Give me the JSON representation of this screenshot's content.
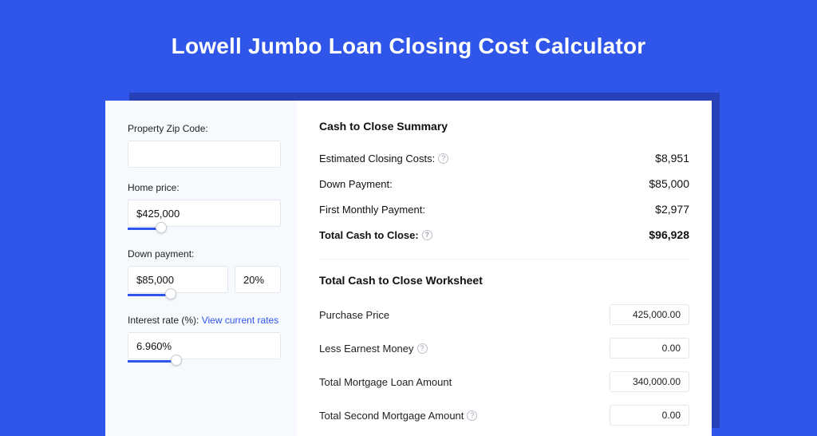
{
  "colors": {
    "page_bg": "#2f56e8",
    "card_shadow": "#2640b8",
    "card_bg": "#fbfdff",
    "sidebar_bg": "#f6f9fe",
    "input_border": "#e3e6ec",
    "slider_track": "#2f56e8",
    "text": "#111111",
    "link": "#2f56e8",
    "help_icon_border": "#b9bec9"
  },
  "header": {
    "title": "Lowell Jumbo Loan Closing Cost Calculator"
  },
  "sidebar": {
    "zip": {
      "label": "Property Zip Code:",
      "value": ""
    },
    "home_price": {
      "label": "Home price:",
      "value": "$425,000",
      "slider_pct": 22
    },
    "down_payment": {
      "label": "Down payment:",
      "value": "$85,000",
      "pct_value": "20%",
      "slider_pct": 28
    },
    "interest_rate": {
      "label": "Interest rate (%):",
      "link_text": "View current rates",
      "value": "6.960%",
      "slider_pct": 32
    }
  },
  "summary": {
    "title": "Cash to Close Summary",
    "rows": [
      {
        "label": "Estimated Closing Costs:",
        "help": true,
        "value": "$8,951",
        "bold": false
      },
      {
        "label": "Down Payment:",
        "help": false,
        "value": "$85,000",
        "bold": false
      },
      {
        "label": "First Monthly Payment:",
        "help": false,
        "value": "$2,977",
        "bold": false
      },
      {
        "label": "Total Cash to Close:",
        "help": true,
        "value": "$96,928",
        "bold": true
      }
    ]
  },
  "worksheet": {
    "title": "Total Cash to Close Worksheet",
    "rows": [
      {
        "label": "Purchase Price",
        "help": false,
        "value": "425,000.00"
      },
      {
        "label": "Less Earnest Money",
        "help": true,
        "value": "0.00"
      },
      {
        "label": "Total Mortgage Loan Amount",
        "help": false,
        "value": "340,000.00"
      },
      {
        "label": "Total Second Mortgage Amount",
        "help": true,
        "value": "0.00"
      }
    ]
  }
}
